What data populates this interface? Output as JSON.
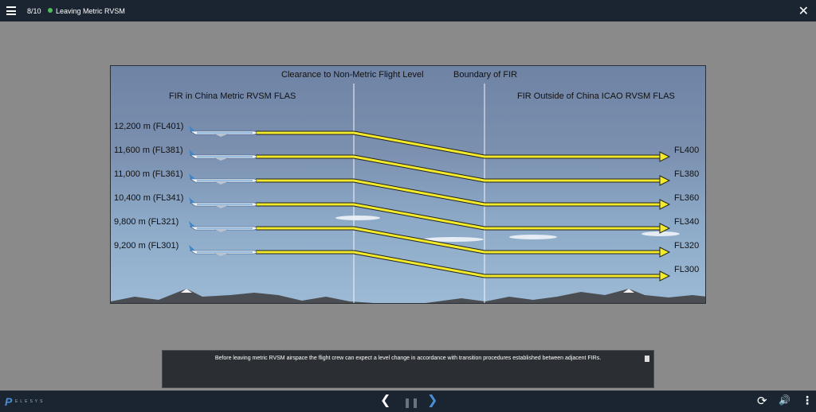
{
  "header": {
    "slide_counter": "8/10",
    "slide_title": "Leaving Metric RVSM",
    "status_color": "#4fbf58"
  },
  "diagram": {
    "clearance_label": "Clearance to Non-Metric Flight Level",
    "boundary_label": "Boundary of FIR",
    "left_region_label": "FIR in China Metric RVSM FLAS",
    "right_region_label": "FIR Outside of China ICAO RVSM FLAS",
    "metric_levels": [
      "12,200 m (FL401)",
      "11,600 m (FL381)",
      "11,000 m (FL361)",
      "10,400 m (FL341)",
      "9,800 m (FL321)",
      "9,200 m (FL301)"
    ],
    "icao_levels": [
      "FL400",
      "FL380",
      "FL360",
      "FL340",
      "FL320",
      "FL300"
    ],
    "arrow_color": "#f2ea2a"
  },
  "caption": {
    "text": "Before leaving metric RVSM airspace the flight crew can expect a level change in accordance with transition procedures established between adjacent FIRs."
  },
  "icons": {
    "menu": "hamburger-icon",
    "close": "close-icon",
    "transcript": "transcript-icon",
    "prev": "chevron-left-icon",
    "pause": "pause-icon",
    "next": "chevron-right-icon",
    "replay": "replay-icon",
    "volume": "volume-icon",
    "more": "more-vertical-icon"
  },
  "brand": {
    "logo_text": "ELESYS"
  }
}
